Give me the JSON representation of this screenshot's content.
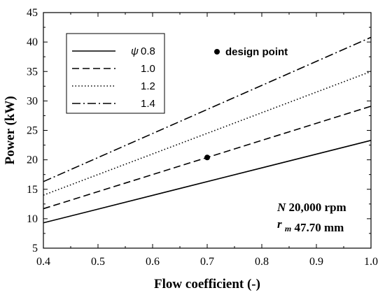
{
  "chart_data": {
    "type": "line",
    "title": "",
    "xlabel": "Flow coefficient (-)",
    "ylabel": "Power (kW)",
    "xlim": [
      0.4,
      1.0
    ],
    "ylim": [
      5,
      45
    ],
    "xticks": [
      0.4,
      0.5,
      0.6,
      0.7,
      0.8,
      0.9,
      1.0
    ],
    "xtick_labels": [
      "0.4",
      "0.5",
      "0.6",
      "0.7",
      "0.8",
      "0.9",
      "1.0"
    ],
    "yticks": [
      5,
      10,
      15,
      20,
      25,
      30,
      35,
      40,
      45
    ],
    "ytick_labels": [
      "5",
      "10",
      "15",
      "20",
      "25",
      "30",
      "35",
      "40",
      "45"
    ],
    "grid": false,
    "legend_position": "top-left",
    "legend_title_symbol": "ψ",
    "series": [
      {
        "name": "0.8",
        "style": "solid",
        "x": [
          0.4,
          1.0
        ],
        "y": [
          9.3,
          23.3
        ]
      },
      {
        "name": "1.0",
        "style": "dashed",
        "x": [
          0.4,
          1.0
        ],
        "y": [
          11.7,
          29.1
        ]
      },
      {
        "name": "1.2",
        "style": "dotted",
        "x": [
          0.4,
          1.0
        ],
        "y": [
          14.0,
          35.0
        ]
      },
      {
        "name": "1.4",
        "style": "dashdot",
        "x": [
          0.4,
          1.0
        ],
        "y": [
          16.3,
          40.8
        ]
      }
    ],
    "points": [
      {
        "name": "design point",
        "x": 0.7,
        "y": 20.4
      }
    ],
    "annotations": {
      "speed_symbol": "N",
      "speed_value": "20,000 rpm",
      "radius_symbol": "r",
      "radius_subscript": "m",
      "radius_value": "47.70 mm"
    },
    "colors": {
      "line": "#000000",
      "background": "#ffffff"
    }
  }
}
